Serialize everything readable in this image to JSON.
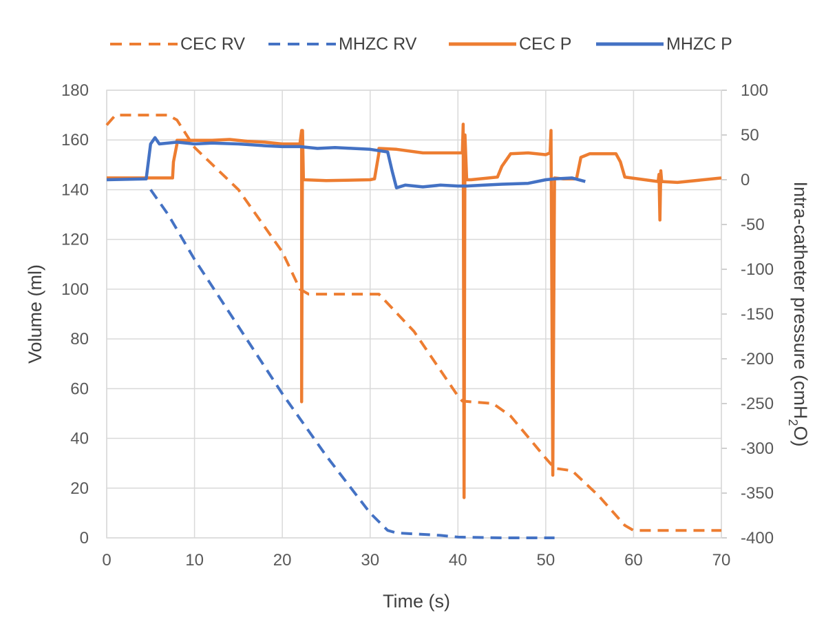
{
  "chart_data": {
    "type": "line",
    "xlabel": "Time (s)",
    "ylabel": "Volume (ml)",
    "y2label_main": "Intra-catheter pressure (cmH",
    "y2label_sub": "2",
    "y2label_tail": "O)",
    "xlim": [
      0,
      70
    ],
    "ylim": [
      0,
      180
    ],
    "y2lim": [
      -400,
      100
    ],
    "grid": true,
    "legend": "top",
    "x_ticks": [
      "0",
      "10",
      "20",
      "30",
      "40",
      "50",
      "60",
      "70"
    ],
    "y_ticks": [
      "0",
      "20",
      "40",
      "60",
      "80",
      "100",
      "120",
      "140",
      "160",
      "180"
    ],
    "y2_ticks": [
      "-400",
      "-350",
      "-300",
      "-250",
      "-200",
      "-150",
      "-100",
      "-50",
      "0",
      "50",
      "100"
    ],
    "colors": {
      "orange": "#ed7d31",
      "blue": "#4472c4"
    },
    "series": [
      {
        "name": "CEC RV",
        "axis": "left",
        "style": "dashed",
        "color": "#ed7d31",
        "x": [
          0,
          1,
          7,
          8,
          10,
          15,
          20,
          22,
          23,
          30,
          31,
          35,
          40,
          40.5,
          44,
          46,
          50,
          51,
          53,
          56,
          59,
          60,
          70
        ],
        "y": [
          166,
          170,
          170,
          168,
          157,
          140,
          115,
          100,
          98,
          98,
          98,
          83,
          57,
          55,
          54,
          49,
          32,
          28,
          27,
          17,
          5,
          3,
          3
        ]
      },
      {
        "name": "MHZC RV",
        "axis": "left",
        "style": "dashed",
        "color": "#4472c4",
        "x": [
          5,
          7,
          10,
          15,
          20,
          25,
          30,
          32,
          33,
          38,
          40,
          45,
          50,
          51
        ],
        "y": [
          140,
          130,
          112,
          85,
          58,
          33,
          10,
          3,
          2,
          1,
          0.3,
          0,
          0,
          0
        ]
      },
      {
        "name": "CEC P",
        "axis": "right",
        "style": "solid",
        "color": "#ed7d31",
        "x": [
          0,
          7.5,
          7.6,
          8,
          8,
          10,
          12,
          14,
          16,
          18,
          20,
          22,
          22.2,
          22.2,
          22.3,
          22.4,
          22.5,
          25,
          30,
          30.5,
          31,
          31,
          33,
          36,
          39,
          40.5,
          40.6,
          40.7,
          40.8,
          41,
          41.5,
          44.5,
          45,
          46,
          48,
          50,
          50.5,
          50.6,
          50.8,
          51,
          52,
          53.5,
          54,
          55,
          58,
          58.5,
          59,
          62.8,
          62.9,
          63,
          63.1,
          63.2,
          65,
          70
        ],
        "y": [
          2,
          2,
          20,
          40,
          44,
          44,
          44,
          45,
          43,
          42,
          40,
          40,
          55,
          -248,
          55,
          0,
          0,
          -1,
          0,
          1,
          30,
          35,
          34,
          30,
          30,
          30,
          62,
          -355,
          50,
          0,
          0,
          3,
          15,
          29,
          30,
          28,
          30,
          55,
          -330,
          2,
          1,
          1,
          25,
          29,
          29,
          20,
          3,
          -2,
          6,
          -45,
          10,
          -2,
          -3,
          2
        ]
      },
      {
        "name": "MHZC P",
        "axis": "right",
        "style": "solid",
        "color": "#4472c4",
        "x": [
          0,
          4.5,
          5,
          5.5,
          6,
          8,
          10,
          12,
          15,
          18,
          20,
          22,
          24,
          26,
          28,
          30,
          32,
          32.5,
          33,
          34,
          36,
          38,
          40,
          41,
          43,
          45,
          48,
          50,
          51,
          53,
          54.5
        ],
        "y": [
          0,
          1,
          40,
          47,
          40,
          42,
          40,
          41,
          40,
          38,
          37,
          37,
          35,
          36,
          35,
          34,
          31,
          10,
          -9,
          -6,
          -8,
          -6,
          -7,
          -7,
          -6,
          -5,
          -4,
          0,
          1,
          2,
          -2
        ]
      }
    ]
  }
}
